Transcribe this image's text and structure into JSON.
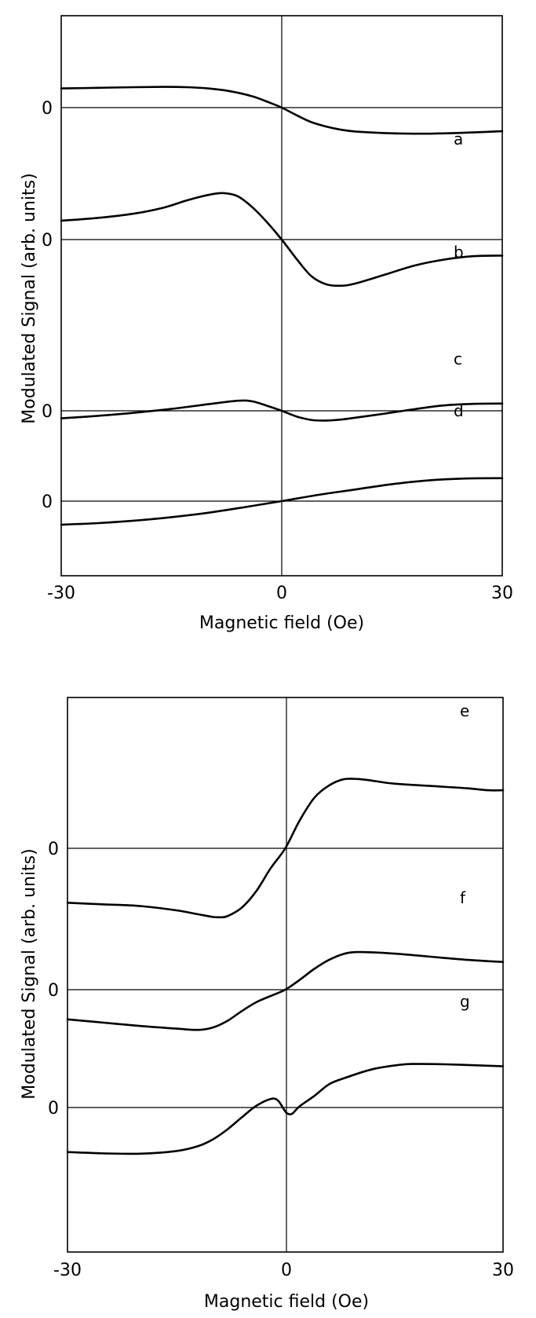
{
  "chart_data": [
    {
      "type": "line",
      "xlabel": "Magnetic field (Oe)",
      "ylabel": "Modulated Signal (arb. units)",
      "xlim": [
        -30,
        30
      ],
      "x_ticks": [
        "-30",
        "0",
        "30"
      ],
      "baseline_label": "0",
      "series": [
        {
          "name": "a",
          "x": [
            -30,
            -25,
            -20,
            -16,
            -13,
            -10,
            -7,
            -4,
            -2,
            0,
            2,
            4,
            6,
            8,
            10,
            14,
            18,
            22,
            26,
            30
          ],
          "y": [
            6.1,
            6.3,
            6.5,
            6.6,
            6.5,
            6.1,
            5.2,
            3.6,
            1.9,
            0.0,
            -2.4,
            -4.6,
            -6.0,
            -7.0,
            -7.6,
            -8.1,
            -8.3,
            -8.2,
            -7.9,
            -7.5
          ]
        },
        {
          "name": "b",
          "x": [
            -30,
            -25,
            -20,
            -16,
            -13,
            -10,
            -8,
            -6,
            -4,
            -2,
            0,
            2,
            4,
            6,
            8,
            10,
            14,
            18,
            22,
            26,
            30
          ],
          "y": [
            6.0,
            6.9,
            8.3,
            10.2,
            12.4,
            14.2,
            14.8,
            13.8,
            10.3,
            5.5,
            0.0,
            -6.1,
            -11.6,
            -14.2,
            -14.7,
            -14.0,
            -11.2,
            -8.3,
            -6.4,
            -5.3,
            -5.1
          ]
        },
        {
          "name": "c",
          "x": [
            -30,
            -25,
            -20,
            -15,
            -10,
            -6,
            -4,
            -2,
            0,
            2,
            4,
            6,
            8,
            10,
            14,
            18,
            22,
            26,
            30
          ],
          "y": [
            -2.4,
            -1.6,
            -0.6,
            0.6,
            2.1,
            3.2,
            3.0,
            1.6,
            0.0,
            -1.8,
            -2.9,
            -3.1,
            -2.8,
            -2.2,
            -0.9,
            0.5,
            1.7,
            2.2,
            2.3
          ]
        },
        {
          "name": "d",
          "x": [
            -30,
            -25,
            -20,
            -15,
            -10,
            -5,
            0,
            5,
            10,
            15,
            20,
            25,
            30
          ],
          "y": [
            -7.5,
            -7.0,
            -6.2,
            -5.1,
            -3.7,
            -1.9,
            0.0,
            2.0,
            3.7,
            5.4,
            6.6,
            7.2,
            7.3
          ]
        }
      ]
    },
    {
      "type": "line",
      "xlabel": "Magnetic field (Oe)",
      "ylabel": "Modulated Signal (arb. units)",
      "xlim": [
        -30,
        30
      ],
      "x_ticks": [
        "-30",
        "0",
        "30"
      ],
      "baseline_label": "0",
      "series": [
        {
          "name": "e",
          "x": [
            -30,
            -25,
            -20,
            -15,
            -12,
            -10,
            -9,
            -8,
            -6,
            -4,
            -2,
            0,
            2,
            4,
            6,
            8,
            10,
            12,
            15,
            20,
            25,
            28,
            30
          ],
          "y": [
            -16.5,
            -17.0,
            -17.5,
            -18.8,
            -20.0,
            -20.8,
            -20.9,
            -20.6,
            -18.0,
            -13.0,
            -6.0,
            0.0,
            8.5,
            15.3,
            19.0,
            20.9,
            21.0,
            20.5,
            19.6,
            18.9,
            18.2,
            17.6,
            17.6
          ]
        },
        {
          "name": "f",
          "x": [
            -30,
            -25,
            -20,
            -15,
            -12,
            -10,
            -8,
            -6,
            -4,
            -2,
            0,
            2,
            4,
            6,
            8,
            10,
            14,
            18,
            22,
            26,
            30
          ],
          "y": [
            -9.0,
            -10.0,
            -11.0,
            -11.8,
            -12.2,
            -11.5,
            -9.5,
            -6.5,
            -3.8,
            -1.9,
            0.0,
            3.0,
            6.3,
            9.0,
            10.8,
            11.4,
            11.1,
            10.4,
            9.6,
            8.9,
            8.4
          ]
        },
        {
          "name": "g",
          "x": [
            -30,
            -25,
            -20,
            -15,
            -12,
            -10,
            -8,
            -6,
            -4,
            -2,
            -1,
            0,
            0.5,
            1,
            2,
            4,
            6,
            8,
            12,
            16,
            18,
            22,
            26,
            30
          ],
          "y": [
            -13.5,
            -13.9,
            -14.0,
            -13.2,
            -11.7,
            -9.7,
            -6.7,
            -3.0,
            0.5,
            2.6,
            2.1,
            -1.2,
            -2.0,
            -1.8,
            0.4,
            3.5,
            7.0,
            8.8,
            11.6,
            13.0,
            13.2,
            13.1,
            12.8,
            12.5
          ]
        }
      ]
    }
  ]
}
